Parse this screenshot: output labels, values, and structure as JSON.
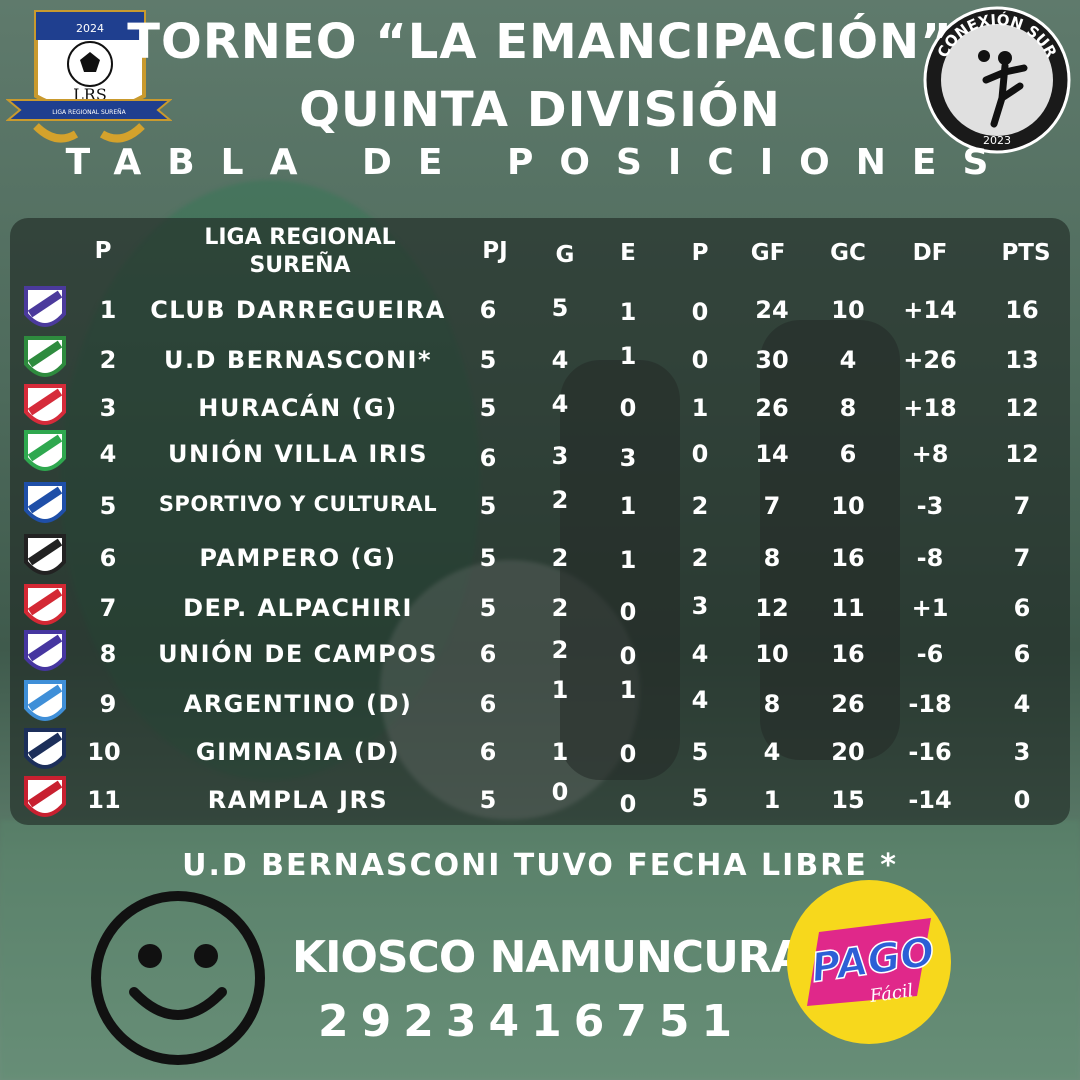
{
  "header": {
    "title_line1": "TORNEO “LA EMANCIPACIÓN”",
    "title_line2": "QUINTA DIVISIÓN",
    "title_line3": "TABLA DE POSICIONES"
  },
  "logos": {
    "left": {
      "year": "2024",
      "initials": "LRS",
      "banner": "LIGA REGIONAL SUREÑA"
    },
    "right": {
      "name": "CONEXIÓN SUR",
      "year": "2023"
    }
  },
  "table": {
    "headers": {
      "pos": "P",
      "league": "LIGA REGIONAL SUREÑA",
      "pj": "PJ",
      "g": "G",
      "e": "E",
      "p": "P",
      "gf": "GF",
      "gc": "GC",
      "df": "DF",
      "pts": "PTS"
    },
    "rows": [
      {
        "pos": "1",
        "team": "CLUB DARREGUEIRA",
        "pj": "6",
        "g": "5",
        "e": "1",
        "p": "0",
        "gf": "24",
        "gc": "10",
        "df": "+14",
        "pts": "16",
        "crest_color": "#4b3a9c"
      },
      {
        "pos": "2",
        "team": "U.D BERNASCONI*",
        "pj": "5",
        "g": "4",
        "e": "1",
        "p": "0",
        "gf": "30",
        "gc": "4",
        "df": "+26",
        "pts": "13",
        "crest_color": "#2e8b3e"
      },
      {
        "pos": "3",
        "team": "HURACÁN (G)",
        "pj": "5",
        "g": "4",
        "e": "0",
        "p": "1",
        "gf": "26",
        "gc": "8",
        "df": "+18",
        "pts": "12",
        "crest_color": "#d62b3a"
      },
      {
        "pos": "4",
        "team": "UNIÓN VILLA IRIS",
        "pj": "6",
        "g": "3",
        "e": "3",
        "p": "0",
        "gf": "14",
        "gc": "6",
        "df": "+8",
        "pts": "12",
        "crest_color": "#2fa84f"
      },
      {
        "pos": "5",
        "team": "SPORTIVO Y CULTURAL",
        "pj": "5",
        "g": "2",
        "e": "1",
        "p": "2",
        "gf": "7",
        "gc": "10",
        "df": "-3",
        "pts": "7",
        "crest_color": "#1f4fa8"
      },
      {
        "pos": "6",
        "team": "PAMPERO (G)",
        "pj": "5",
        "g": "2",
        "e": "1",
        "p": "2",
        "gf": "8",
        "gc": "16",
        "df": "-8",
        "pts": "7",
        "crest_color": "#222222"
      },
      {
        "pos": "7",
        "team": "DEP. ALPACHIRI",
        "pj": "5",
        "g": "2",
        "e": "0",
        "p": "3",
        "gf": "12",
        "gc": "11",
        "df": "+1",
        "pts": "6",
        "crest_color": "#d42834"
      },
      {
        "pos": "8",
        "team": "UNIÓN DE CAMPOS",
        "pj": "6",
        "g": "2",
        "e": "0",
        "p": "4",
        "gf": "10",
        "gc": "16",
        "df": "-6",
        "pts": "6",
        "crest_color": "#4636a0"
      },
      {
        "pos": "9",
        "team": "ARGENTINO (D)",
        "pj": "6",
        "g": "1",
        "e": "1",
        "p": "4",
        "gf": "8",
        "gc": "26",
        "df": "-18",
        "pts": "4",
        "crest_color": "#3f8fd8"
      },
      {
        "pos": "10",
        "team": "GIMNASIA (D)",
        "pj": "6",
        "g": "1",
        "e": "0",
        "p": "5",
        "gf": "4",
        "gc": "20",
        "df": "-16",
        "pts": "3",
        "crest_color": "#1c2f5a"
      },
      {
        "pos": "11",
        "team": "RAMPLA JRS",
        "pj": "5",
        "g": "0",
        "e": "0",
        "p": "5",
        "gf": "1",
        "gc": "15",
        "df": "-14",
        "pts": "0",
        "crest_color": "#c82030"
      }
    ]
  },
  "footer": {
    "note": "U.D BERNASCONI TUVO FECHA LIBRE *",
    "sponsor_name": "KIOSCO NAMUNCURA",
    "sponsor_phone": "2923416751",
    "pago_label": "PAGO",
    "pago_sub": "Fácil"
  },
  "colors": {
    "pago_yellow": "#f7d81c",
    "pago_pink": "#e0288a",
    "pago_blue": "#2c5fd6"
  }
}
